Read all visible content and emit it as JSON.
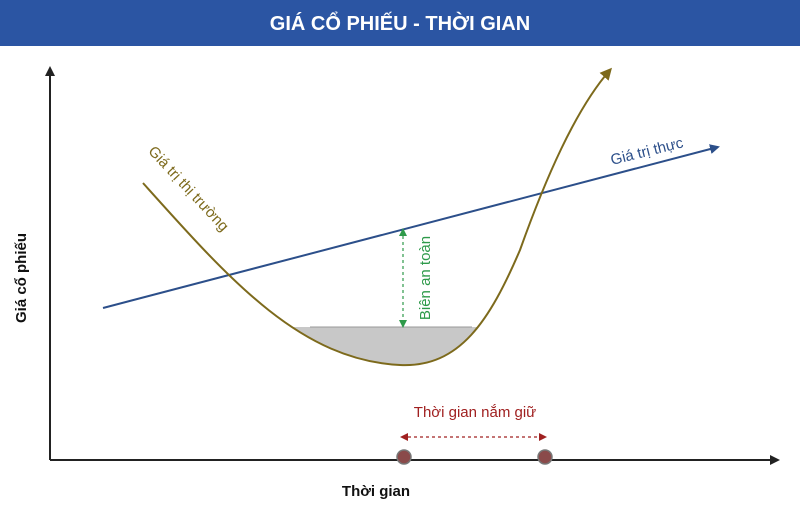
{
  "header": {
    "title": "GIÁ CỔ PHIẾU - THỜI GIAN"
  },
  "axes": {
    "y_label": "Giá cổ phiếu",
    "x_label": "Thời gian"
  },
  "curves": {
    "market": "Giá trị thị trường",
    "intrinsic": "Giá trị thực"
  },
  "annotations": {
    "margin": "Biên an toàn",
    "holding": "Thời gian nắm giữ"
  }
}
